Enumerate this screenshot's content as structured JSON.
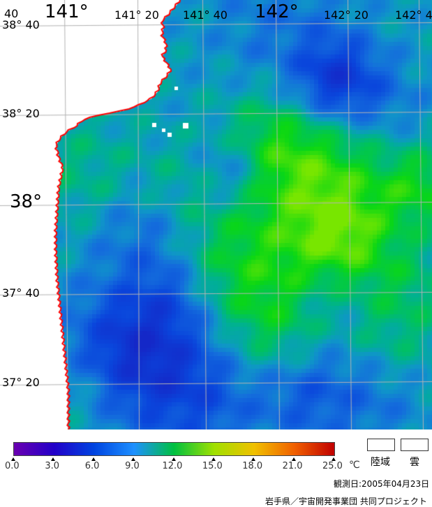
{
  "map": {
    "lon_labels": [
      {
        "text": "40"
      },
      {
        "text": "141°"
      },
      {
        "text": "141° 20"
      },
      {
        "text": "141° 40"
      },
      {
        "text": "142°"
      },
      {
        "text": "142° 20"
      },
      {
        "text": "142° 4"
      }
    ],
    "lat_labels": [
      {
        "text": "38° 40"
      },
      {
        "text": "38° 20"
      },
      {
        "text": "38°"
      },
      {
        "text": "37° 40"
      },
      {
        "text": "37° 20"
      }
    ],
    "colors": {
      "land": "#ffffff",
      "coastline": "#ff0000",
      "grid": "#b4b4b4"
    }
  },
  "colorbar": {
    "ticks": [
      "0.0",
      "3.0",
      "6.0",
      "9.0",
      "12.0",
      "15.0",
      "18.0",
      "21.0",
      "25.0"
    ],
    "unit": "℃",
    "colors": [
      "#6a00b0",
      "#2200c8",
      "#0044e0",
      "#1e90ff",
      "#00c040",
      "#a0e000",
      "#f0c000",
      "#f06000",
      "#c00000"
    ]
  },
  "legend": {
    "land_label": "陸域",
    "cloud_label": "雲"
  },
  "footer": {
    "observation_date": "観測日:2005年04月23日",
    "credit": "岩手県／宇宙開発事業団 共同プロジェクト"
  }
}
